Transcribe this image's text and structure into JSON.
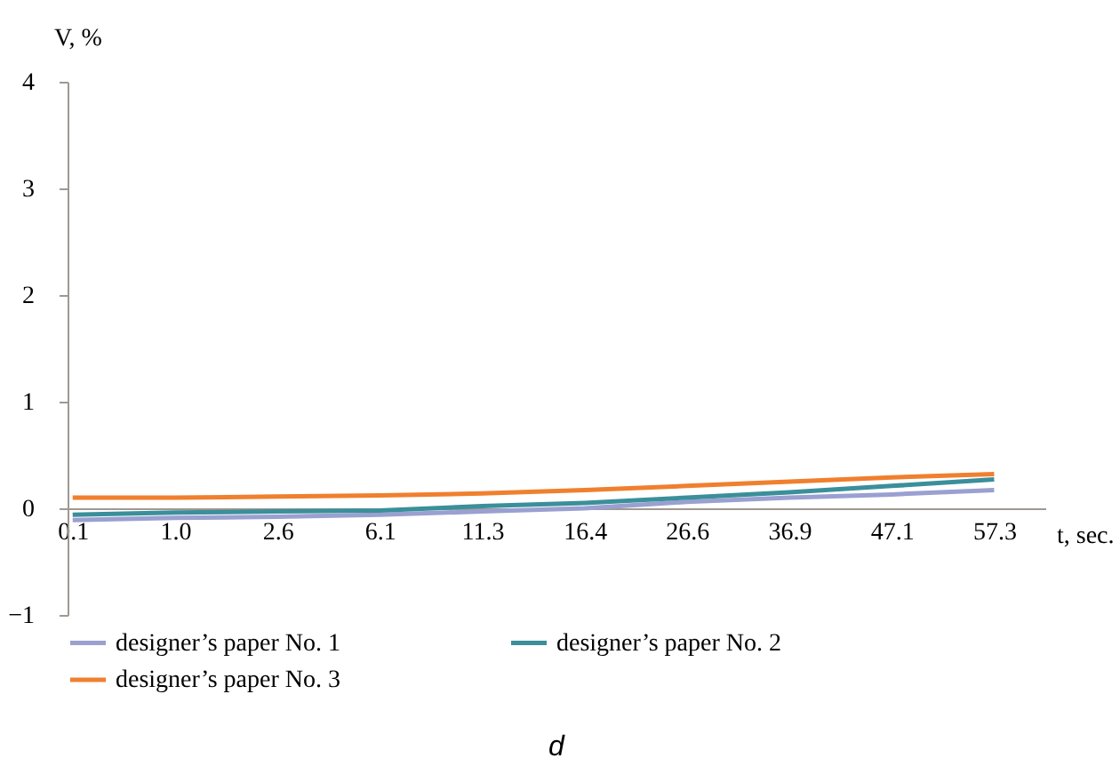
{
  "chart_data": {
    "type": "line",
    "xlabel": "t, sec.",
    "ylabel": "V, %",
    "annotations": [
      "d"
    ],
    "categories": [
      "0.1",
      "1.0",
      "2.6",
      "6.1",
      "11.3",
      "16.4",
      "26.6",
      "36.9",
      "47.1",
      "57.3"
    ],
    "series": [
      {
        "name": "designer’s paper No. 1",
        "color": "#9aa0d0",
        "values": [
          -0.11,
          -0.09,
          -0.08,
          -0.06,
          -0.03,
          0,
          0.06,
          0.1,
          0.13,
          0.17
        ]
      },
      {
        "name": "designer’s paper No. 2",
        "color": "#3a8f9a",
        "values": [
          -0.06,
          -0.04,
          -0.03,
          -0.02,
          0.02,
          0.05,
          0.1,
          0.15,
          0.21,
          0.27
        ]
      },
      {
        "name": "designer’s paper No. 3",
        "color": "#f07f2e",
        "values": [
          0.1,
          0.1,
          0.11,
          0.12,
          0.14,
          0.17,
          0.21,
          0.25,
          0.29,
          0.32
        ]
      }
    ],
    "ylim": [
      -1,
      4
    ],
    "yticks": [
      -1,
      0,
      1,
      2,
      3,
      4
    ],
    "grid": false,
    "legend": "bottom",
    "marker": "none",
    "line_style": "solid"
  }
}
